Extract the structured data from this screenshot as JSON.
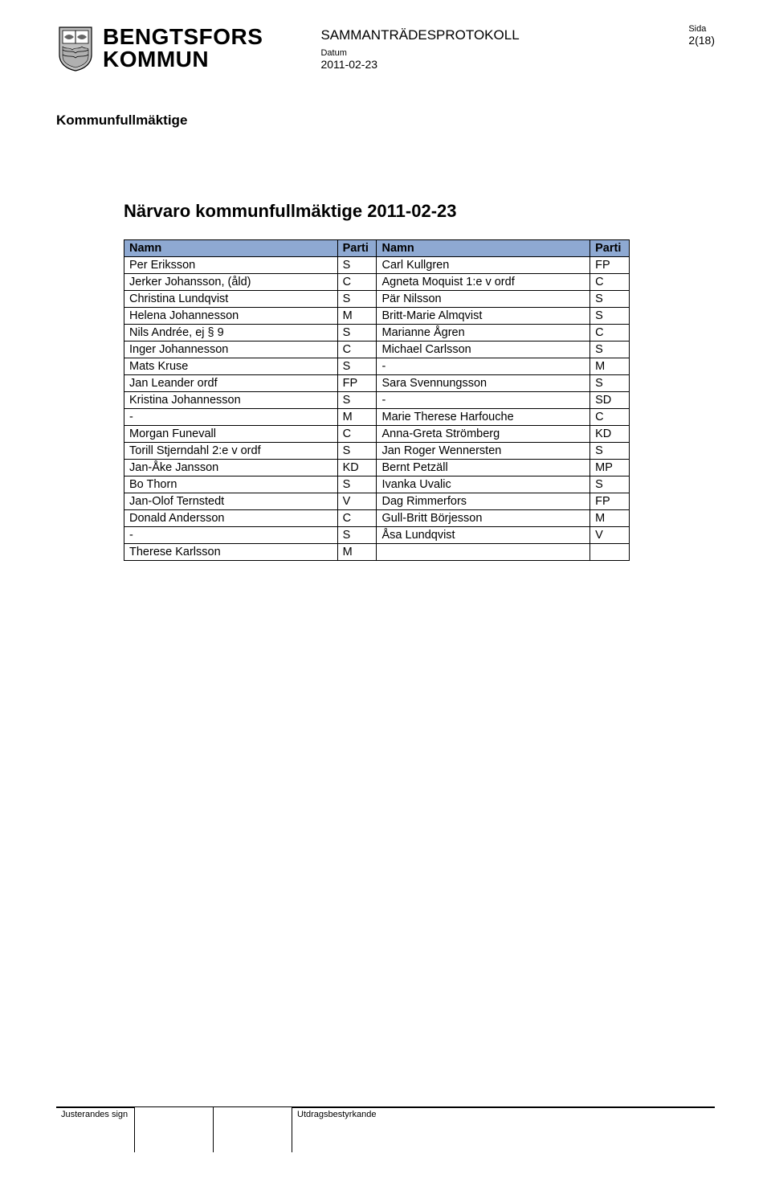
{
  "header": {
    "org_line1": "BENGTSFORS",
    "org_line2": "KOMMUN",
    "doc_title": "SAMMANTRÄDESPROTOKOLL",
    "datum_label": "Datum",
    "datum_value": "2011-02-23",
    "sida_label": "Sida",
    "sida_value": "2(18)",
    "subheading": "Kommunfullmäktige"
  },
  "title": "Närvaro kommunfullmäktige 2011-02-23",
  "table": {
    "header_bg": "#8ea9d2",
    "columns": [
      "Namn",
      "Parti",
      "Namn",
      "Parti"
    ],
    "rows": [
      [
        "Per Eriksson",
        "S",
        "Carl Kullgren",
        "FP"
      ],
      [
        "Jerker Johansson, (åld)",
        "C",
        "Agneta Moquist 1:e v ordf",
        "C"
      ],
      [
        "Christina Lundqvist",
        "S",
        "Pär Nilsson",
        "S"
      ],
      [
        "Helena Johannesson",
        "M",
        "Britt-Marie Almqvist",
        "S"
      ],
      [
        "Nils Andrée, ej § 9",
        "S",
        "Marianne Ågren",
        "C"
      ],
      [
        "Inger Johannesson",
        "C",
        "Michael Carlsson",
        "S"
      ],
      [
        "Mats Kruse",
        "S",
        "-",
        "M"
      ],
      [
        "Jan Leander ordf",
        "FP",
        "Sara Svennungsson",
        "S"
      ],
      [
        "Kristina Johannesson",
        "S",
        "-",
        "SD"
      ],
      [
        "-",
        "M",
        "Marie Therese Harfouche",
        "C"
      ],
      [
        "Morgan Funevall",
        "C",
        "Anna-Greta Strömberg",
        "KD"
      ],
      [
        "Torill Stjerndahl 2:e v ordf",
        "S",
        "Jan Roger Wennersten",
        "S"
      ],
      [
        "Jan-Åke Jansson",
        "KD",
        "Bernt Petzäll",
        "MP"
      ],
      [
        "Bo Thorn",
        "S",
        "Ivanka Uvalic",
        "S"
      ],
      [
        "Jan-Olof Ternstedt",
        "V",
        "Dag Rimmerfors",
        "FP"
      ],
      [
        "Donald Andersson",
        "C",
        "Gull-Britt Börjesson",
        "M"
      ],
      [
        "-",
        "S",
        "Åsa Lundqvist",
        "V"
      ],
      [
        "Therese Karlsson",
        "M",
        "",
        ""
      ]
    ]
  },
  "footer": {
    "left_label": "Justerandes sign",
    "right_label": "Utdragsbestyrkande"
  }
}
